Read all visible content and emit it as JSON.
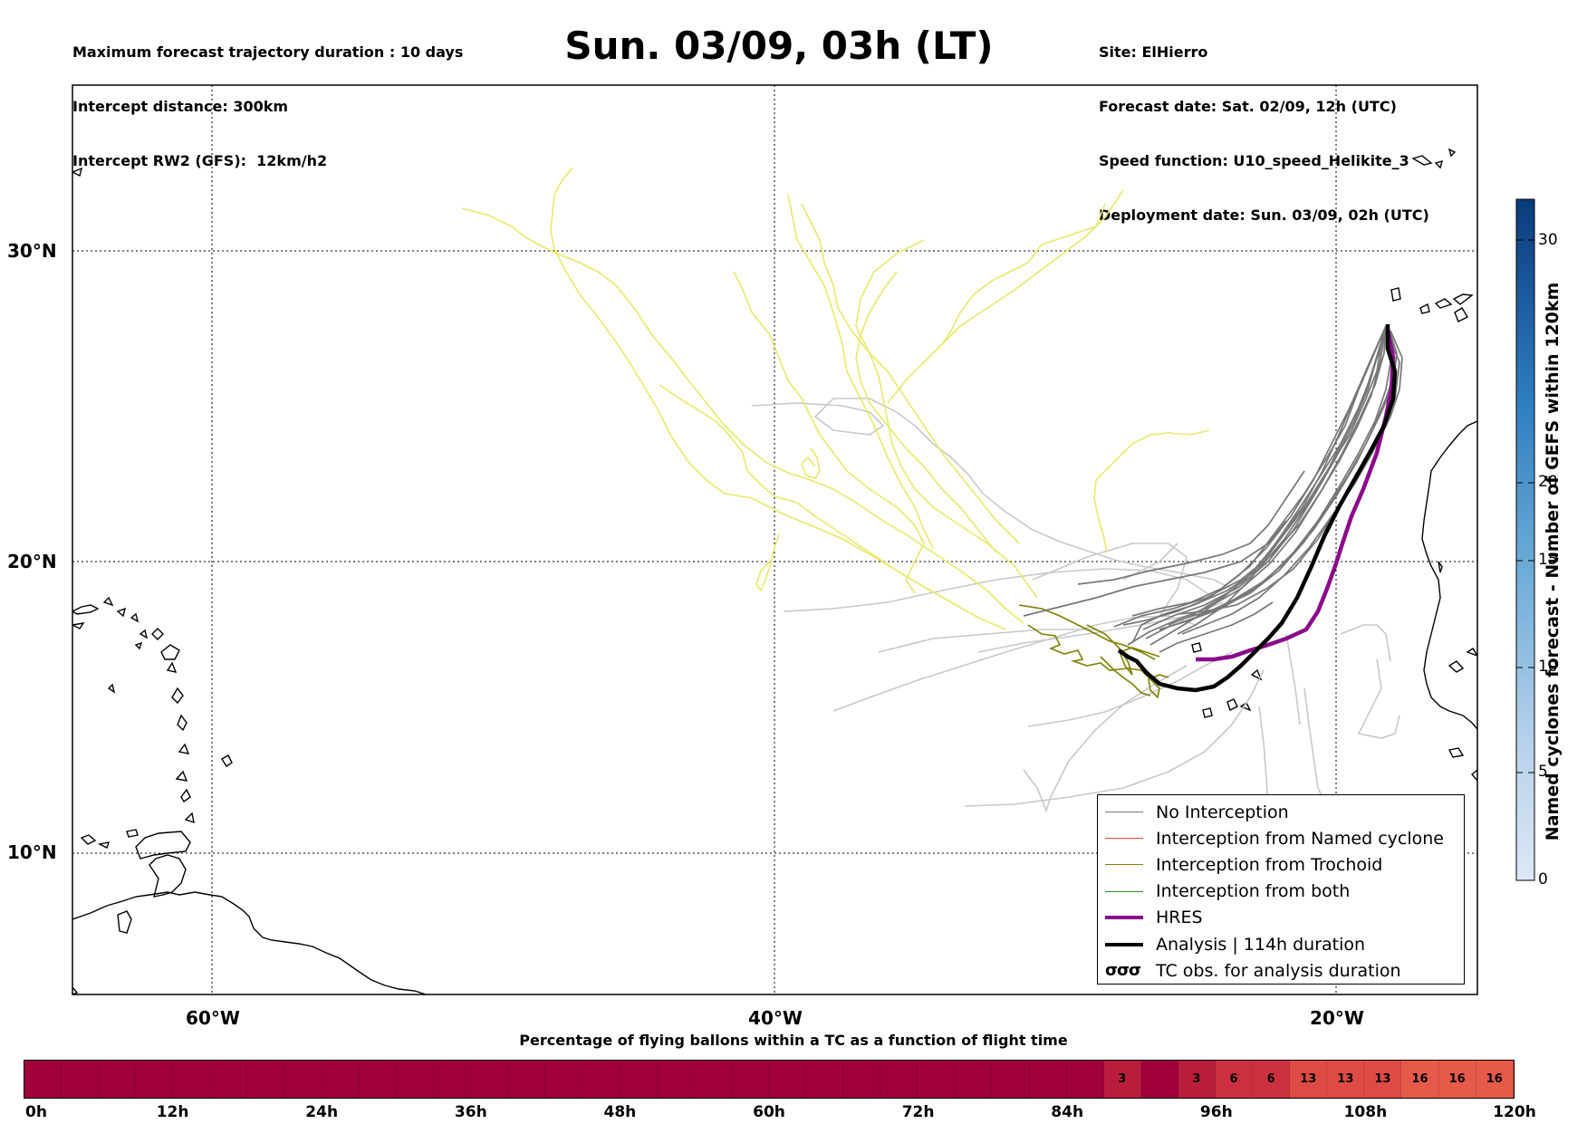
{
  "header": {
    "left_lines": [
      "Maximum forecast trajectory duration : 10 days",
      "Intercept distance: 300km",
      "Intercept RW2 (GFS):  12km/h2"
    ],
    "title": "Sun. 03/09, 03h (LT)",
    "right_lines": [
      "Site: ElHierro",
      "Forecast date: Sat. 02/09, 12h (UTC)",
      "Speed function: U10_speed_Helikite_3",
      "Deployment date: Sun. 03/09, 02h (UTC)"
    ]
  },
  "map": {
    "lat_labels": [
      "30°N",
      "20°N",
      "10°N"
    ],
    "lon_labels": [
      "60°W",
      "40°W",
      "20°W"
    ],
    "colors": {
      "no_interception": "#777777",
      "no_interception_light": "#c8c8c8",
      "named_cyclone": "#e8502a",
      "trochoid": "#7f7f00",
      "both": "#2a8a2a",
      "hres": "#8b0a8b",
      "analysis": "#000000",
      "yellow_tracks": "#e8e86a"
    }
  },
  "legend": {
    "items": [
      {
        "label": "No Interception",
        "color": "#777777",
        "width": 1.5
      },
      {
        "label": "Interception from Named cyclone",
        "color": "#e8502a",
        "width": 1.5
      },
      {
        "label": "Interception from Trochoid",
        "color": "#7f7f00",
        "width": 1.5
      },
      {
        "label": "Interception from both",
        "color": "#2a8a2a",
        "width": 1.5
      },
      {
        "label": "HRES",
        "color": "#8b0a8b",
        "width": 4
      },
      {
        "label": "Analysis | 114h duration",
        "color": "#000000",
        "width": 4
      }
    ],
    "tc_symbol": "σσσ",
    "tc_label": "TC obs. for analysis duration"
  },
  "colorbar": {
    "title": "Named cyclones forecast - Number of GEFS within 120km",
    "ticks": [
      "30",
      "20",
      "15",
      "10",
      "5",
      "0"
    ]
  },
  "bottom_bar": {
    "title": "Percentage of flying ballons within a TC as a function of flight time",
    "ticks": [
      "0h",
      "12h",
      "24h",
      "36h",
      "48h",
      "60h",
      "72h",
      "84h",
      "96h",
      "108h",
      "120h"
    ],
    "segment_values": [
      0,
      0,
      0,
      0,
      0,
      0,
      0,
      0,
      0,
      0,
      0,
      0,
      0,
      0,
      0,
      0,
      0,
      0,
      0,
      0,
      0,
      0,
      0,
      0,
      0,
      0,
      0,
      0,
      0,
      3,
      0,
      3,
      6,
      6,
      13,
      13,
      13,
      16,
      16,
      16
    ],
    "colors": {
      "0": "#a0003c",
      "3": "#b81e3c",
      "6": "#cc3040",
      "13": "#de4a44",
      "16": "#e65a4a"
    }
  }
}
